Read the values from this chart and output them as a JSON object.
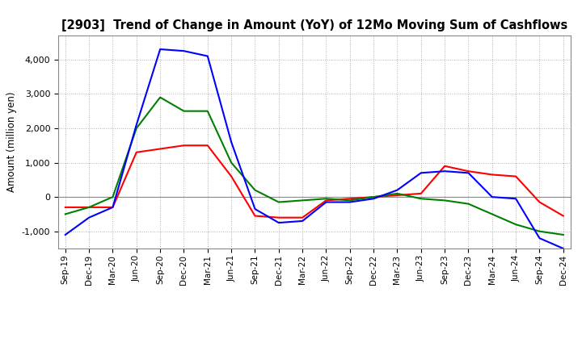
{
  "title": "[2903]  Trend of Change in Amount (YoY) of 12Mo Moving Sum of Cashflows",
  "ylabel": "Amount (million yen)",
  "x_labels": [
    "Sep-19",
    "Dec-19",
    "Mar-20",
    "Jun-20",
    "Sep-20",
    "Dec-20",
    "Mar-21",
    "Jun-21",
    "Sep-21",
    "Dec-21",
    "Mar-22",
    "Jun-22",
    "Sep-22",
    "Dec-22",
    "Mar-23",
    "Jun-23",
    "Sep-23",
    "Dec-23",
    "Mar-24",
    "Jun-24",
    "Sep-24",
    "Dec-24"
  ],
  "operating": [
    -300,
    -300,
    -300,
    1300,
    1400,
    1500,
    1500,
    600,
    -550,
    -600,
    -600,
    -100,
    -50,
    0,
    50,
    100,
    900,
    750,
    650,
    600,
    -150,
    -550
  ],
  "investing": [
    -500,
    -300,
    0,
    2000,
    2900,
    2500,
    2500,
    1000,
    200,
    -150,
    -100,
    -50,
    -100,
    0,
    100,
    -50,
    -100,
    -200,
    -500,
    -800,
    -1000,
    -1100
  ],
  "free": [
    -1100,
    -600,
    -300,
    2100,
    4300,
    4250,
    4100,
    1600,
    -350,
    -750,
    -700,
    -150,
    -150,
    -50,
    200,
    700,
    750,
    700,
    0,
    -50,
    -1200,
    -1500
  ],
  "operating_color": "#ff0000",
  "investing_color": "#008000",
  "free_color": "#0000ff",
  "ylim": [
    -1500,
    4700
  ],
  "yticks": [
    -1000,
    0,
    1000,
    2000,
    3000,
    4000
  ],
  "background_color": "#ffffff",
  "grid_color": "#b0b0b0"
}
